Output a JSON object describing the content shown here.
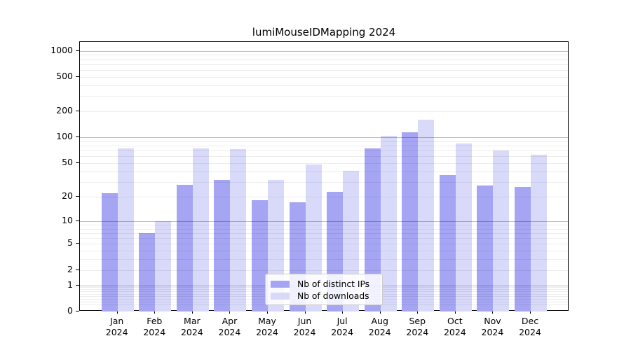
{
  "title": "lumiMouseIDMapping 2024",
  "chart_data": {
    "type": "bar",
    "title": "lumiMouseIDMapping 2024",
    "categories": [
      "Jan",
      "Feb",
      "Mar",
      "Apr",
      "May",
      "Jun",
      "Jul",
      "Aug",
      "Sep",
      "Oct",
      "Nov",
      "Dec"
    ],
    "year": "2024",
    "series": [
      {
        "name": "Nb of distinct IPs",
        "color": "#a5a5f4",
        "values": [
          22,
          7,
          28,
          32,
          18,
          17,
          23,
          75,
          115,
          36,
          27,
          26
        ]
      },
      {
        "name": "Nb of downloads",
        "color": "#d9d9fa",
        "values": [
          74,
          10,
          74,
          73,
          32,
          48,
          41,
          105,
          160,
          85,
          71,
          63
        ]
      }
    ],
    "xlabel": "",
    "ylabel": "",
    "y_scale": "log10(1+x)",
    "y_ticks": [
      1000,
      500,
      200,
      100,
      50,
      20,
      10,
      5,
      2,
      1,
      0
    ],
    "ylim": [
      0,
      1240
    ],
    "grid": "horizontal major (1,10,100,1000) + minor log subdivisions, drawn over bars",
    "legend_position": "bottom-center-inside"
  },
  "legend": {
    "items": [
      {
        "label": "Nb of distinct IPs"
      },
      {
        "label": "Nb of downloads"
      }
    ]
  },
  "colors": {
    "distinct_ips_bar": "#a5a5f4",
    "downloads_bar": "#d9d9fa",
    "spine": "#000000",
    "background": "#ffffff"
  }
}
